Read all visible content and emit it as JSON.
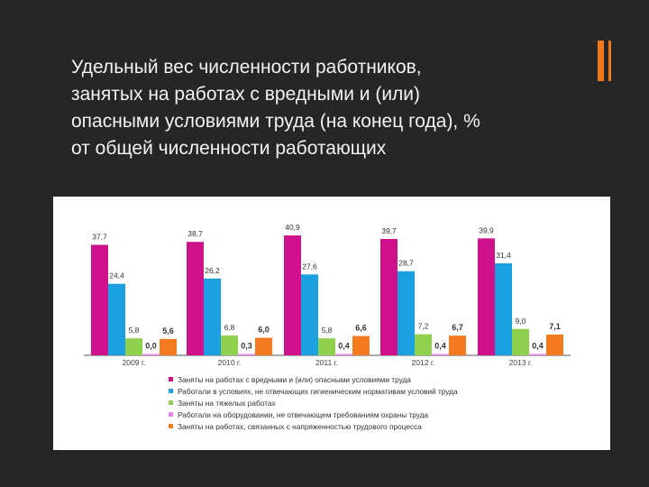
{
  "slide": {
    "title_lines": [
      "Удельный вес численности работников,",
      "занятых на работах с вредными и (или)",
      "опасными условиями труда (на конец года), %",
      "от общей численности работающих"
    ],
    "accent_color": "#f07a1a"
  },
  "chart_data": {
    "type": "bar",
    "categories": [
      "2009 г.",
      "2010 г.",
      "2011 г.",
      "2012 г.",
      "2013 г."
    ],
    "ylim": [
      0,
      45
    ],
    "grid": false,
    "legend_position": "bottom",
    "series": [
      {
        "name": "Заняты на работах с вредными и (или) опасными условиями труда",
        "color": "#d0118c",
        "values": [
          37.7,
          38.7,
          40.9,
          39.7,
          39.9
        ],
        "labels": [
          "37,7",
          "38,7",
          "40,9",
          "39,7",
          "39,9"
        ]
      },
      {
        "name": "Работали в условиях, не отвечающих гигиеническим нормативам условий труда",
        "color": "#1ba1e2",
        "values": [
          24.4,
          26.2,
          27.6,
          28.7,
          31.4
        ],
        "labels": [
          "24,4",
          "26,2",
          "27,6",
          "28,7",
          "31,4"
        ]
      },
      {
        "name": "Заняты на тяжелых работах",
        "color": "#8fd14f",
        "values": [
          5.8,
          6.8,
          5.8,
          7.2,
          9.0
        ],
        "labels": [
          "5,8",
          "6,8",
          "5,8",
          "7,2",
          "9,0"
        ]
      },
      {
        "name": "Работали на оборудовании, не отвечающем требованиям охраны труда",
        "color": "#ee82ee",
        "values": [
          0.0,
          0.3,
          0.4,
          0.4,
          0.4
        ],
        "labels": [
          "0,0",
          "0,3",
          "0,4",
          "0,4",
          "0,4"
        ]
      },
      {
        "name": "Заняты на работах, связанных с напряженностью трудового процесса",
        "color": "#f47a20",
        "values": [
          5.6,
          6.0,
          6.6,
          6.7,
          7.1
        ],
        "labels": [
          "5,6",
          "6,0",
          "6,6",
          "6,7",
          "7,1"
        ]
      }
    ]
  }
}
